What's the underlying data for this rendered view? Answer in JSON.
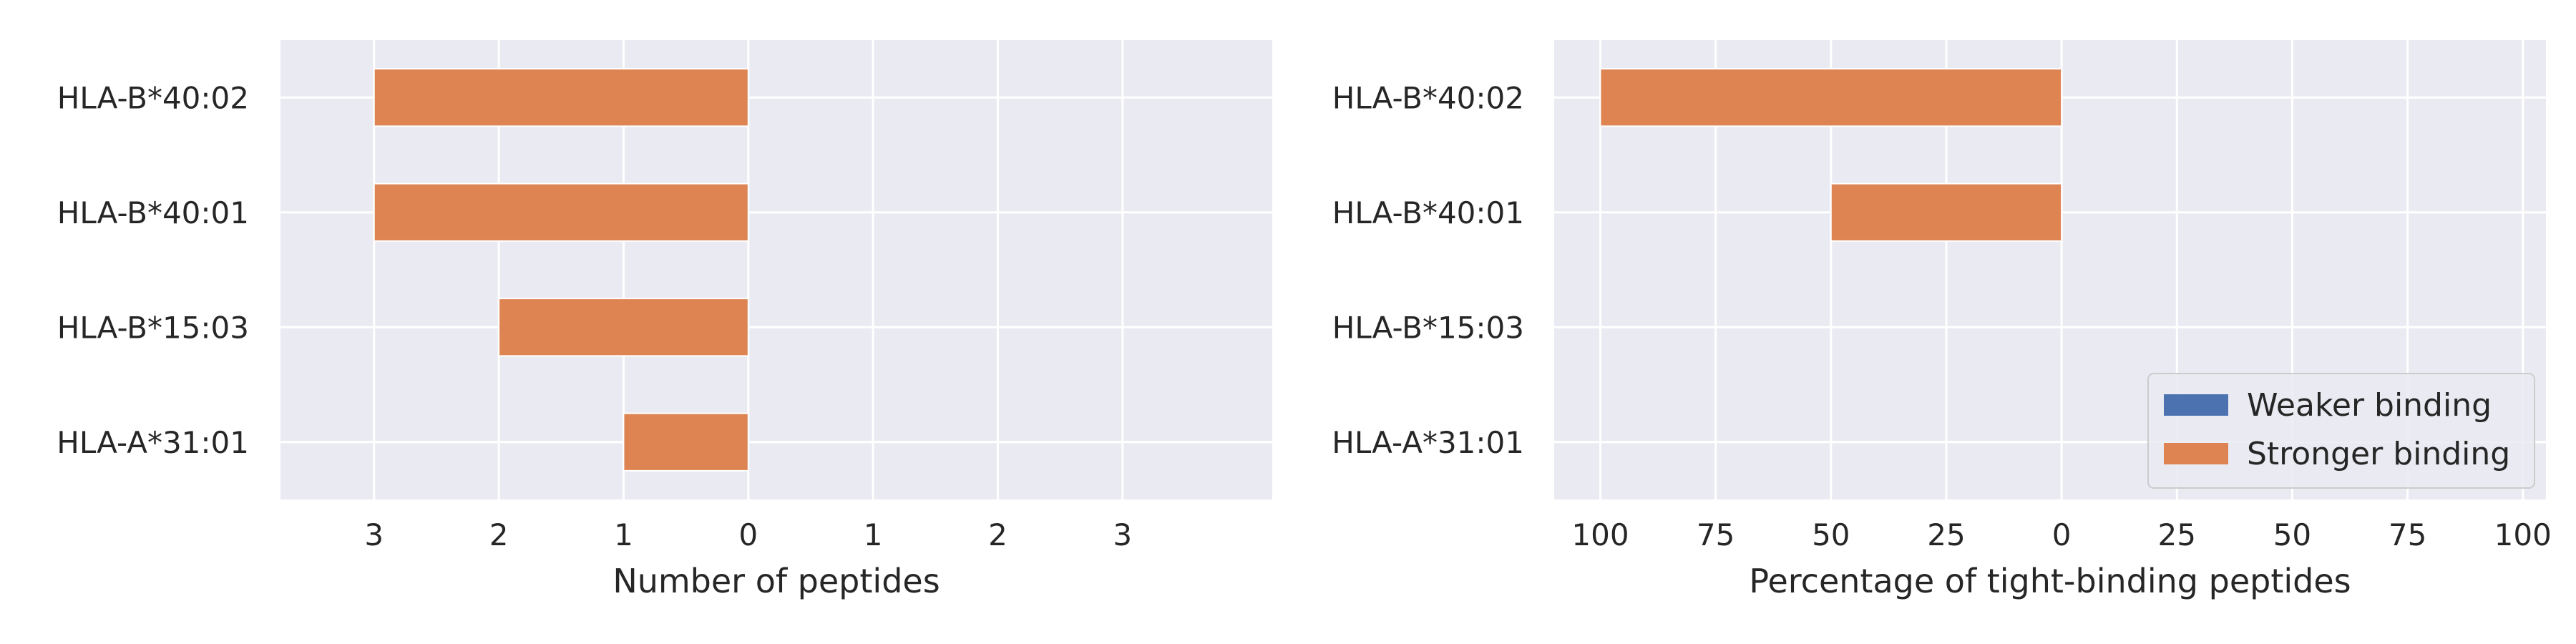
{
  "colors": {
    "panel_bg": "#EAEAF2",
    "grid": "#FFFFFF",
    "weaker": "#4C72B0",
    "stronger": "#DD8452",
    "text": "#262626"
  },
  "chart_data": [
    {
      "type": "bar",
      "orientation": "horizontal",
      "categories": [
        "HLA-A*31:01",
        "HLA-B*15:03",
        "HLA-B*40:01",
        "HLA-B*40:02"
      ],
      "xlabel": "Number of peptides",
      "xticks": [
        -3,
        -2,
        -1,
        0,
        1,
        2,
        3
      ],
      "xtick_labels": [
        "3",
        "2",
        "1",
        "0",
        "1",
        "2",
        "3"
      ],
      "xlim": [
        -3.75,
        4.2
      ],
      "grid": true,
      "series": [
        {
          "name": "Weaker binding",
          "values": [
            0,
            0,
            0,
            0
          ],
          "color": "#4C72B0"
        },
        {
          "name": "Stronger binding",
          "values": [
            -1,
            -2,
            -3,
            -3
          ],
          "color": "#DD8452"
        }
      ]
    },
    {
      "type": "bar",
      "orientation": "horizontal",
      "categories": [
        "HLA-A*31:01",
        "HLA-B*15:03",
        "HLA-B*40:01",
        "HLA-B*40:02"
      ],
      "xlabel": "Percentage of tight-binding peptides",
      "xticks": [
        -100,
        -75,
        -50,
        -25,
        0,
        25,
        50,
        75,
        100
      ],
      "xtick_labels": [
        "100",
        "75",
        "50",
        "25",
        "0",
        "25",
        "50",
        "75",
        "100"
      ],
      "xlim": [
        -110,
        105
      ],
      "grid": true,
      "legend": {
        "position": "lower-right",
        "entries": [
          {
            "label": "Weaker binding",
            "color": "#4C72B0"
          },
          {
            "label": "Stronger binding",
            "color": "#DD8452"
          }
        ]
      },
      "series": [
        {
          "name": "Weaker binding",
          "values": [
            0,
            0,
            0,
            0
          ],
          "color": "#4C72B0"
        },
        {
          "name": "Stronger binding",
          "values": [
            0,
            0,
            -50,
            -100
          ],
          "color": "#DD8452"
        }
      ]
    }
  ]
}
